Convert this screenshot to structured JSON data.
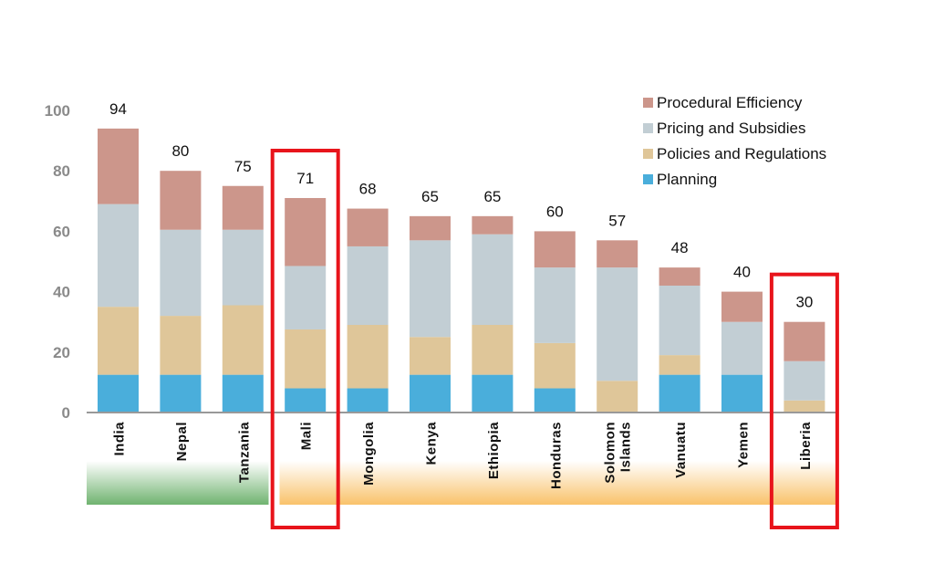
{
  "chart_data": {
    "type": "bar",
    "stacked": true,
    "categories": [
      "India",
      "Nepal",
      "Tanzania",
      "Mali",
      "Mongolia",
      "Kenya",
      "Ethiopia",
      "Honduras",
      "Solomon Islands",
      "Vanuatu",
      "Yemen",
      "Liberia"
    ],
    "totals": [
      94,
      80,
      75,
      71,
      68,
      65,
      65,
      60,
      57,
      48,
      40,
      30
    ],
    "series": [
      {
        "name": "Planning",
        "color": "#4aaedb",
        "values": [
          12.5,
          12.5,
          12.5,
          8,
          8,
          12.5,
          12.5,
          8,
          0,
          12.5,
          12.5,
          0
        ]
      },
      {
        "name": "Policies and Regulations",
        "color": "#dfc699",
        "values": [
          22.5,
          19.5,
          23,
          19.5,
          21,
          12.5,
          16.5,
          15,
          10.5,
          6.5,
          0,
          4
        ]
      },
      {
        "name": "Pricing and Subsidies",
        "color": "#c2ced4",
        "values": [
          34,
          28.5,
          25,
          21,
          26,
          32,
          30,
          25,
          37.5,
          23,
          17.5,
          13
        ]
      },
      {
        "name": "Procedural Efficiency",
        "color": "#cc968b",
        "values": [
          25,
          19.5,
          14.5,
          22.5,
          12.5,
          8,
          6,
          12,
          9,
          6,
          10,
          13
        ]
      }
    ],
    "legend_order": [
      3,
      2,
      1,
      0
    ],
    "yticks": [
      0,
      20,
      40,
      60,
      80,
      100
    ],
    "ylim": [
      0,
      100
    ],
    "grid": false,
    "legend_position": "top-right",
    "highlighted": [
      "Mali",
      "Liberia"
    ],
    "highlight_color": "#e8141b",
    "band": [
      {
        "from": "India",
        "to": "Tanzania",
        "color": "#6fb36f"
      },
      {
        "from": "Mali",
        "to": "Liberia",
        "color": "#f9c26a"
      }
    ]
  }
}
